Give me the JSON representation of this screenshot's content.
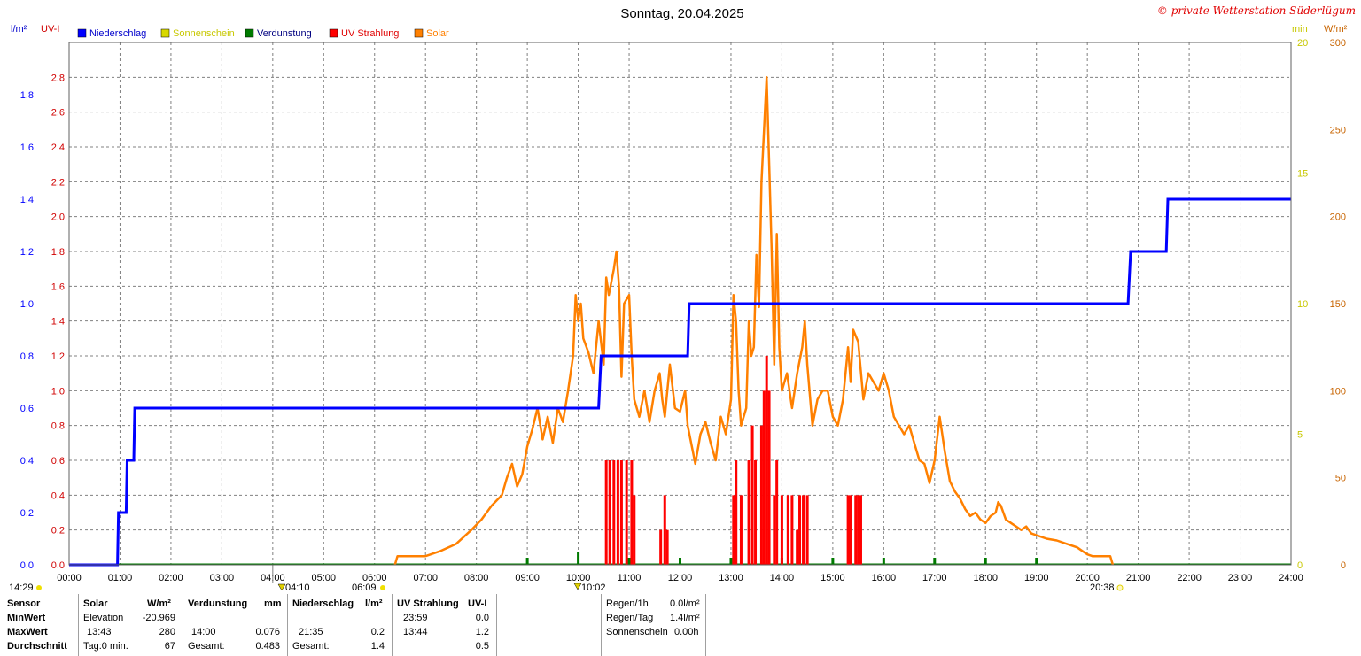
{
  "header": {
    "title": "Sonntag, 20.04.2025",
    "copyright": "© private Wetterstation Süderlügum"
  },
  "colors": {
    "niederschlag": "#0000ff",
    "sonnenschein": "#d8d800",
    "verdunstung": "#007a00",
    "uv": "#ff0000",
    "solar": "#ff8000",
    "grid": "#808080"
  },
  "chart_data": {
    "type": "line",
    "title": "Sonntag, 20.04.2025",
    "legend": [
      "Niederschlag",
      "Sonnenschein",
      "Verdunstung",
      "UV Strahlung",
      "Solar"
    ],
    "legend_placement": "top",
    "grid": true,
    "x_ticks": [
      "00:00",
      "01:00",
      "02:00",
      "03:00",
      "04:00",
      "05:00",
      "06:00",
      "07:00",
      "08:00",
      "09:00",
      "10:00",
      "11:00",
      "12:00",
      "13:00",
      "14:00",
      "15:00",
      "16:00",
      "17:00",
      "18:00",
      "19:00",
      "20:00",
      "21:00",
      "22:00",
      "23:00",
      "24:00"
    ],
    "xlim": [
      0,
      24
    ],
    "axes": {
      "rain": {
        "unit": "l/m²",
        "range": [
          0,
          2.0
        ],
        "ticks": [
          "0.0",
          "0.2",
          "0.4",
          "0.6",
          "0.8",
          "1.0",
          "1.2",
          "1.4",
          "1.6",
          "1.8"
        ],
        "color": "#0000ff"
      },
      "uv": {
        "unit": "UV-I",
        "range": [
          0,
          3.0
        ],
        "ticks": [
          "0.0",
          "0.2",
          "0.4",
          "0.6",
          "0.8",
          "1.0",
          "1.2",
          "1.4",
          "1.6",
          "1.8",
          "2.0",
          "2.2",
          "2.4",
          "2.6",
          "2.8"
        ],
        "color": "#d00000"
      },
      "min": {
        "unit": "min",
        "range": [
          0,
          20
        ],
        "ticks": [
          "0",
          "5",
          "10",
          "15",
          "20"
        ],
        "color": "#c8c800"
      },
      "solar": {
        "unit": "W/m²",
        "range": [
          0,
          300
        ],
        "ticks": [
          "0",
          "50",
          "100",
          "150",
          "200",
          "250",
          "300"
        ],
        "color": "#c86400"
      }
    },
    "series": {
      "niederschlag": {
        "name": "Niederschlag",
        "axis": "rain",
        "steps": [
          [
            0,
            0
          ],
          [
            0.95,
            0
          ],
          [
            0.97,
            0.2
          ],
          [
            1.12,
            0.2
          ],
          [
            1.14,
            0.4
          ],
          [
            1.27,
            0.4
          ],
          [
            1.29,
            0.6
          ],
          [
            10.4,
            0.6
          ],
          [
            10.45,
            0.8
          ],
          [
            12.15,
            0.8
          ],
          [
            12.18,
            1.0
          ],
          [
            20.8,
            1.0
          ],
          [
            20.85,
            1.2
          ],
          [
            21.55,
            1.2
          ],
          [
            21.58,
            1.4
          ],
          [
            24,
            1.4
          ]
        ]
      },
      "solar": {
        "name": "Solar",
        "axis": "solar",
        "points": [
          [
            6.4,
            0
          ],
          [
            6.45,
            5
          ],
          [
            7.0,
            5
          ],
          [
            7.3,
            8
          ],
          [
            7.6,
            12
          ],
          [
            7.9,
            20
          ],
          [
            8.1,
            26
          ],
          [
            8.3,
            34
          ],
          [
            8.5,
            40
          ],
          [
            8.6,
            50
          ],
          [
            8.7,
            58
          ],
          [
            8.8,
            45
          ],
          [
            8.9,
            52
          ],
          [
            9.0,
            68
          ],
          [
            9.1,
            78
          ],
          [
            9.2,
            90
          ],
          [
            9.3,
            72
          ],
          [
            9.4,
            85
          ],
          [
            9.5,
            70
          ],
          [
            9.6,
            90
          ],
          [
            9.7,
            82
          ],
          [
            9.8,
            100
          ],
          [
            9.9,
            120
          ],
          [
            9.95,
            155
          ],
          [
            10.0,
            140
          ],
          [
            10.05,
            150
          ],
          [
            10.1,
            130
          ],
          [
            10.2,
            122
          ],
          [
            10.3,
            110
          ],
          [
            10.4,
            140
          ],
          [
            10.5,
            115
          ],
          [
            10.55,
            165
          ],
          [
            10.6,
            155
          ],
          [
            10.7,
            170
          ],
          [
            10.75,
            180
          ],
          [
            10.8,
            160
          ],
          [
            10.85,
            108
          ],
          [
            10.9,
            150
          ],
          [
            11.0,
            155
          ],
          [
            11.05,
            120
          ],
          [
            11.1,
            95
          ],
          [
            11.2,
            85
          ],
          [
            11.3,
            100
          ],
          [
            11.4,
            82
          ],
          [
            11.5,
            100
          ],
          [
            11.6,
            110
          ],
          [
            11.65,
            95
          ],
          [
            11.7,
            85
          ],
          [
            11.8,
            115
          ],
          [
            11.9,
            90
          ],
          [
            12.0,
            88
          ],
          [
            12.1,
            100
          ],
          [
            12.15,
            80
          ],
          [
            12.3,
            58
          ],
          [
            12.4,
            75
          ],
          [
            12.5,
            82
          ],
          [
            12.6,
            70
          ],
          [
            12.7,
            60
          ],
          [
            12.8,
            85
          ],
          [
            12.9,
            75
          ],
          [
            13.0,
            95
          ],
          [
            13.05,
            155
          ],
          [
            13.1,
            140
          ],
          [
            13.15,
            100
          ],
          [
            13.2,
            80
          ],
          [
            13.3,
            90
          ],
          [
            13.35,
            140
          ],
          [
            13.4,
            120
          ],
          [
            13.45,
            125
          ],
          [
            13.5,
            178
          ],
          [
            13.55,
            148
          ],
          [
            13.6,
            220
          ],
          [
            13.65,
            250
          ],
          [
            13.7,
            280
          ],
          [
            13.75,
            230
          ],
          [
            13.8,
            180
          ],
          [
            13.85,
            115
          ],
          [
            13.9,
            190
          ],
          [
            13.95,
            125
          ],
          [
            14.0,
            100
          ],
          [
            14.1,
            110
          ],
          [
            14.2,
            90
          ],
          [
            14.3,
            110
          ],
          [
            14.4,
            125
          ],
          [
            14.45,
            140
          ],
          [
            14.5,
            115
          ],
          [
            14.6,
            80
          ],
          [
            14.7,
            95
          ],
          [
            14.8,
            100
          ],
          [
            14.9,
            100
          ],
          [
            15.0,
            85
          ],
          [
            15.1,
            80
          ],
          [
            15.2,
            95
          ],
          [
            15.3,
            125
          ],
          [
            15.35,
            105
          ],
          [
            15.4,
            135
          ],
          [
            15.5,
            128
          ],
          [
            15.6,
            95
          ],
          [
            15.7,
            110
          ],
          [
            15.8,
            105
          ],
          [
            15.9,
            100
          ],
          [
            16.0,
            110
          ],
          [
            16.1,
            100
          ],
          [
            16.2,
            85
          ],
          [
            16.3,
            80
          ],
          [
            16.4,
            75
          ],
          [
            16.5,
            80
          ],
          [
            16.6,
            70
          ],
          [
            16.7,
            60
          ],
          [
            16.8,
            58
          ],
          [
            16.9,
            47
          ],
          [
            17.0,
            60
          ],
          [
            17.1,
            85
          ],
          [
            17.2,
            65
          ],
          [
            17.3,
            48
          ],
          [
            17.4,
            42
          ],
          [
            17.5,
            38
          ],
          [
            17.6,
            32
          ],
          [
            17.7,
            28
          ],
          [
            17.8,
            30
          ],
          [
            17.9,
            26
          ],
          [
            18.0,
            24
          ],
          [
            18.1,
            28
          ],
          [
            18.2,
            30
          ],
          [
            18.25,
            36
          ],
          [
            18.3,
            34
          ],
          [
            18.4,
            26
          ],
          [
            18.5,
            24
          ],
          [
            18.6,
            22
          ],
          [
            18.7,
            20
          ],
          [
            18.8,
            22
          ],
          [
            18.9,
            18
          ],
          [
            19.0,
            17
          ],
          [
            19.2,
            15
          ],
          [
            19.4,
            14
          ],
          [
            19.6,
            12
          ],
          [
            19.8,
            10
          ],
          [
            19.9,
            8
          ],
          [
            20.0,
            6
          ],
          [
            20.1,
            5
          ],
          [
            20.45,
            5
          ],
          [
            20.5,
            0
          ]
        ]
      },
      "uv": {
        "name": "UV Strahlung",
        "axis": "uv",
        "spikes": [
          [
            10.55,
            0.6
          ],
          [
            10.62,
            0.6
          ],
          [
            10.7,
            0.6
          ],
          [
            10.78,
            0.6
          ],
          [
            10.85,
            0.6
          ],
          [
            10.95,
            0.6
          ],
          [
            11.05,
            0.6
          ],
          [
            11.1,
            0.4
          ],
          [
            11.62,
            0.2
          ],
          [
            11.7,
            0.4
          ],
          [
            11.75,
            0.2
          ],
          [
            13.05,
            0.4
          ],
          [
            13.1,
            0.6
          ],
          [
            13.2,
            0.4
          ],
          [
            13.35,
            0.6
          ],
          [
            13.42,
            0.8
          ],
          [
            13.48,
            0.6
          ],
          [
            13.6,
            0.8
          ],
          [
            13.65,
            1.0
          ],
          [
            13.7,
            1.2
          ],
          [
            13.75,
            1.0
          ],
          [
            13.85,
            0.4
          ],
          [
            13.9,
            0.6
          ],
          [
            14.0,
            0.4
          ],
          [
            14.12,
            0.4
          ],
          [
            14.2,
            0.4
          ],
          [
            14.3,
            0.2
          ],
          [
            14.35,
            0.4
          ],
          [
            14.42,
            0.4
          ],
          [
            14.5,
            0.4
          ],
          [
            15.3,
            0.4
          ],
          [
            15.35,
            0.4
          ],
          [
            15.45,
            0.4
          ],
          [
            15.5,
            0.4
          ],
          [
            15.55,
            0.4
          ]
        ]
      },
      "verdunstung": {
        "name": "Verdunstung",
        "axis": "rain",
        "ticks": [
          9,
          10,
          11,
          12,
          13,
          14,
          15,
          16,
          17,
          18,
          19
        ]
      }
    },
    "markers": {
      "left_time": "14:29",
      "sunrise_low": "04:10",
      "sunrise": "06:09",
      "noon": "10:02",
      "sunset": "20:38"
    }
  },
  "table": {
    "col_sensor": {
      "header": "Sensor",
      "rows": [
        "MinWert",
        "MaxWert",
        "Durchschnitt"
      ]
    },
    "solar": {
      "header": "Solar",
      "unit": "W/m²",
      "rows": [
        [
          "Elevation",
          "-20.969"
        ],
        [
          "13:43",
          "280"
        ],
        [
          "Tag:0 min.",
          "67"
        ]
      ]
    },
    "verdunstung": {
      "header": "Verdunstung",
      "unit": "mm",
      "rows": [
        [
          "",
          ""
        ],
        [
          "14:00",
          "0.076"
        ],
        [
          "Gesamt:",
          "0.483"
        ]
      ]
    },
    "niederschlag": {
      "header": "Niederschlag",
      "unit": "l/m²",
      "rows": [
        [
          "",
          ""
        ],
        [
          "21:35",
          "0.2"
        ],
        [
          "Gesamt:",
          "1.4"
        ]
      ]
    },
    "uv": {
      "header": "UV Strahlung",
      "unit": "UV-I",
      "rows": [
        [
          "23:59",
          "0.0"
        ],
        [
          "13:44",
          "1.2"
        ],
        [
          "",
          "0.5"
        ]
      ]
    },
    "summary": [
      [
        "Regen/1h",
        "0.0l/m²"
      ],
      [
        "Regen/Tag",
        "1.4l/m²"
      ],
      [
        "Sonnenschein",
        "0.00h"
      ]
    ]
  }
}
